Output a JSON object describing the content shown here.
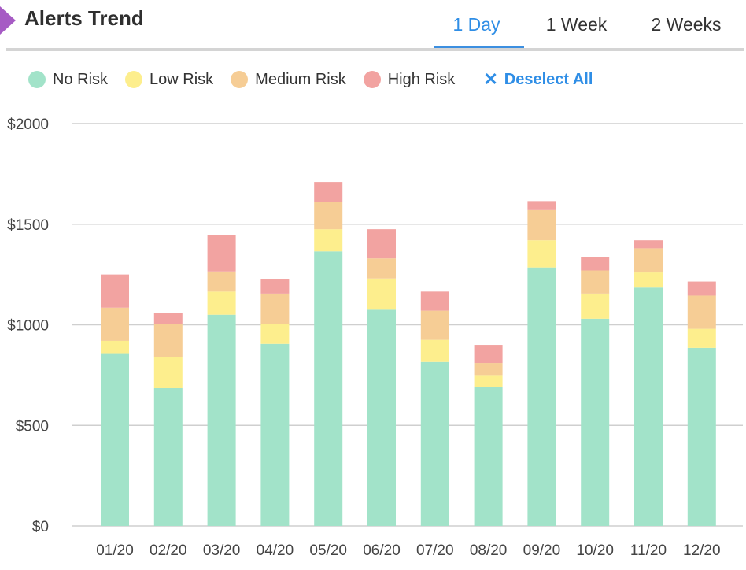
{
  "header": {
    "title": "Alerts Trend",
    "tabs": [
      {
        "label": "1 Day",
        "active": true
      },
      {
        "label": "1 Week",
        "active": false
      },
      {
        "label": "2 Weeks",
        "active": false
      }
    ]
  },
  "legend": {
    "items": [
      {
        "label": "No Risk",
        "color": "#a2e3c9"
      },
      {
        "label": "Low Risk",
        "color": "#fdee8d"
      },
      {
        "label": "Medium Risk",
        "color": "#f6cd95"
      },
      {
        "label": "High Risk",
        "color": "#f2a3a1"
      }
    ],
    "deselect_label": "Deselect All"
  },
  "chart_data": {
    "type": "bar",
    "stacked": true,
    "categories": [
      "01/20",
      "02/20",
      "03/20",
      "04/20",
      "05/20",
      "06/20",
      "07/20",
      "08/20",
      "09/20",
      "10/20",
      "11/20",
      "12/20"
    ],
    "series": [
      {
        "name": "No Risk",
        "color": "#a2e3c9",
        "values": [
          855,
          685,
          1050,
          905,
          1365,
          1075,
          815,
          690,
          1285,
          1030,
          1185,
          885
        ]
      },
      {
        "name": "Low Risk",
        "color": "#fdee8d",
        "values": [
          65,
          155,
          115,
          100,
          110,
          155,
          110,
          60,
          135,
          125,
          75,
          95
        ]
      },
      {
        "name": "Medium Risk",
        "color": "#f6cd95",
        "values": [
          165,
          165,
          100,
          150,
          135,
          100,
          145,
          60,
          150,
          115,
          120,
          165
        ]
      },
      {
        "name": "High Risk",
        "color": "#f2a3a1",
        "values": [
          165,
          55,
          180,
          70,
          100,
          145,
          95,
          90,
          45,
          65,
          40,
          70
        ]
      }
    ],
    "yticks": [
      "$0",
      "$500",
      "$1000",
      "$1500",
      "$2000"
    ],
    "ylim": [
      0,
      2000
    ],
    "grid": true,
    "xlabel": "",
    "ylabel": ""
  }
}
